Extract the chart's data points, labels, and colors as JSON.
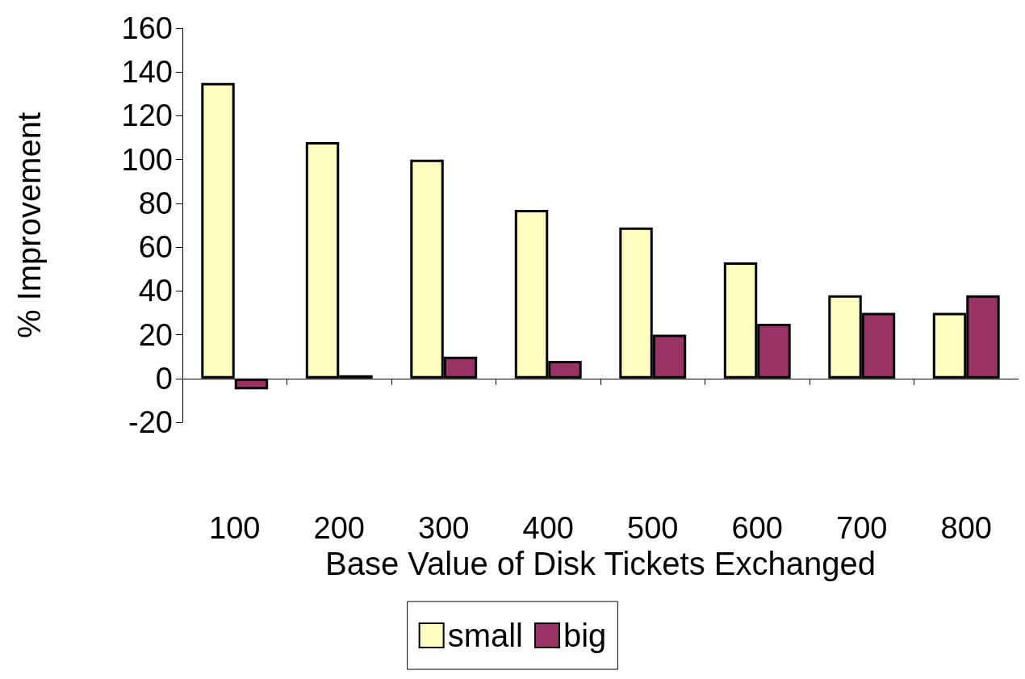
{
  "chart_data": {
    "type": "bar",
    "xlabel": "Base Value of Disk Tickets Exchanged",
    "ylabel": "% Improvement",
    "categories": [
      "100",
      "200",
      "300",
      "400",
      "500",
      "600",
      "700",
      "800"
    ],
    "series": [
      {
        "name": "small",
        "color": "#ffffc0",
        "values": [
          135,
          108,
          100,
          77,
          69,
          53,
          38,
          30
        ]
      },
      {
        "name": "big",
        "color": "#993366",
        "values": [
          -5,
          1.5,
          10,
          8,
          20,
          25,
          30,
          38
        ]
      }
    ],
    "ylim": [
      -20,
      160
    ],
    "yticks": [
      -20,
      0,
      20,
      40,
      60,
      80,
      100,
      120,
      140,
      160
    ],
    "legend": "bottom"
  }
}
